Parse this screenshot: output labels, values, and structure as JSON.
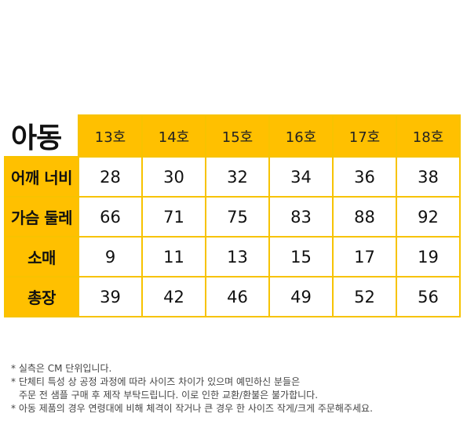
{
  "table": {
    "title": "아동",
    "columns": [
      "13호",
      "14호",
      "15호",
      "16호",
      "17호",
      "18호"
    ],
    "rows": [
      {
        "label": "어깨 너비",
        "values": [
          "28",
          "30",
          "32",
          "34",
          "36",
          "38"
        ]
      },
      {
        "label": "가슴 둘레",
        "values": [
          "66",
          "71",
          "75",
          "83",
          "88",
          "92"
        ]
      },
      {
        "label": "소매",
        "values": [
          "9",
          "11",
          "13",
          "15",
          "17",
          "19"
        ]
      },
      {
        "label": "총장",
        "values": [
          "39",
          "42",
          "46",
          "49",
          "52",
          "56"
        ]
      }
    ]
  },
  "notes": [
    "* 실측은 CM 단위입니다.",
    "* 단체티 특성 상 공정 과정에 따라 사이즈 차이가 있으며 예민하신 분들은",
    "주문 전 샘플 구매 후 제작 부탁드립니다. 이로 인한 교환/환불은 불가합니다.",
    "* 아동 제품의 경우 연령대에 비해 체격이 작거나 큰 경우 한 사이즈 작게/크게 주문해주세요."
  ],
  "colors": {
    "accent": "#ffc000",
    "border": "#f7c300"
  }
}
